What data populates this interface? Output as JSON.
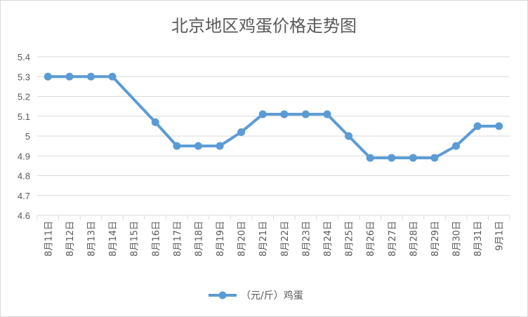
{
  "chart_data": {
    "type": "line",
    "title": "北京地区鸡蛋价格走势图",
    "xlabel": "",
    "ylabel": "",
    "categories": [
      "8月11日",
      "8月12日",
      "8月13日",
      "8月14日",
      "8月15日",
      "8月16日",
      "8月17日",
      "8月18日",
      "8月19日",
      "8月20日",
      "8月21日",
      "8月22日",
      "8月23日",
      "8月24日",
      "8月25日",
      "8月26日",
      "8月27日",
      "8月28日",
      "8月29日",
      "8月30日",
      "8月31日",
      "9月1日"
    ],
    "series": [
      {
        "name": "（元/斤）鸡蛋",
        "color": "#5b9bd5",
        "values": [
          5.3,
          5.3,
          5.3,
          5.3,
          null,
          5.07,
          4.95,
          4.95,
          4.95,
          5.02,
          5.11,
          5.11,
          5.11,
          5.11,
          5.0,
          4.89,
          4.89,
          4.89,
          4.89,
          4.95,
          5.05,
          5.05
        ]
      }
    ],
    "ylim": [
      4.6,
      5.4
    ],
    "yticks": [
      "4.6",
      "4.7",
      "4.8",
      "4.9",
      "5",
      "5.1",
      "5.2",
      "5.3",
      "5.4"
    ],
    "grid": true,
    "legend": "bottom"
  }
}
